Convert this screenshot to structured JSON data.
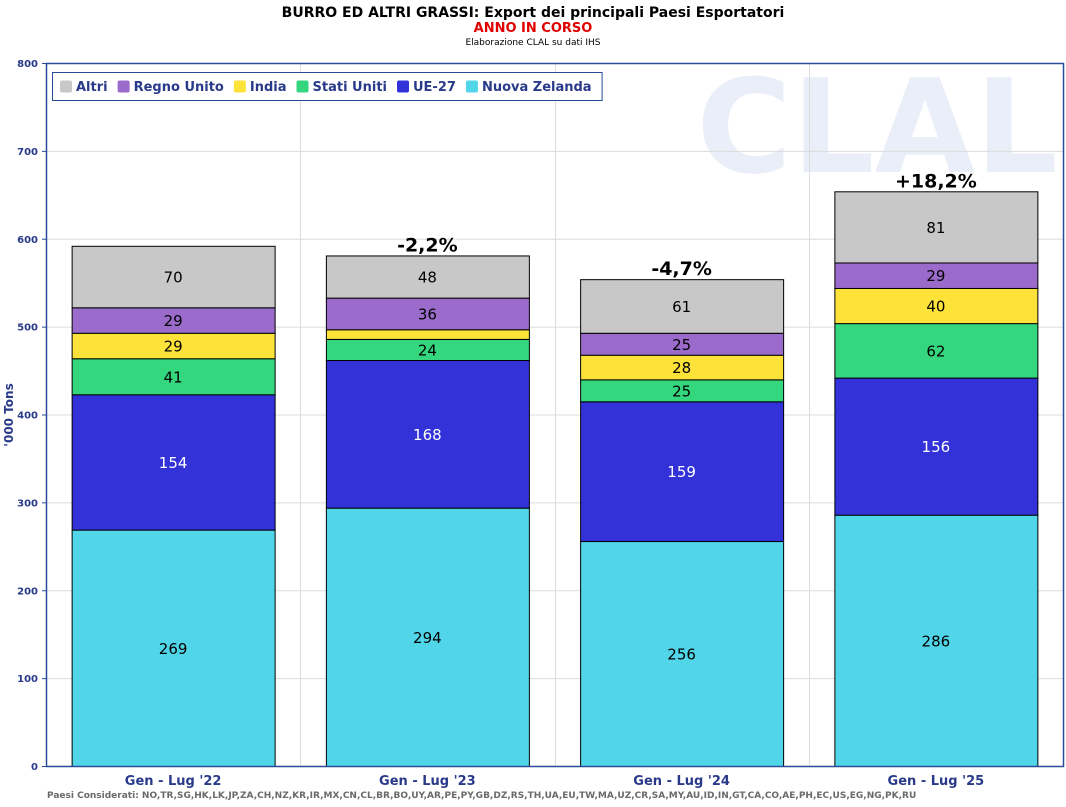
{
  "header": {
    "title": "BURRO ED ALTRI GRASSI: Export dei principali Paesi Esportatori",
    "subtitle": "ANNO IN CORSO",
    "source": "Elaborazione CLAL su dati IHS"
  },
  "watermark": "CLAL",
  "footer": "Paesi Considerati: NO,TR,SG,HK,LK,JP,ZA,CH,NZ,KR,IR,MX,CN,CL,BR,BO,UY,AR,PE,PY,GB,DZ,RS,TH,UA,EU,TW,MA,UZ,CR,SA,MY,AU,ID,IN,GT,CA,CO,AE,PH,EC,US,EG,NG,PK,RU",
  "chart_data": {
    "type": "bar",
    "stacked": true,
    "ylabel": "'000 Tons",
    "ylim": [
      0,
      800
    ],
    "yticks": [
      0,
      100,
      200,
      300,
      400,
      500,
      600,
      700,
      800
    ],
    "grid": true,
    "legend_position": "top-left",
    "categories": [
      "Gen - Lug '22",
      "Gen - Lug '23",
      "Gen - Lug '24",
      "Gen - Lug '25"
    ],
    "series": [
      {
        "name": "Nuova Zelanda",
        "color": "#50d6e8",
        "values": [
          269,
          294,
          256,
          286
        ],
        "labels": [
          "269",
          "294",
          "256",
          "286"
        ],
        "label_color": "#000000"
      },
      {
        "name": "UE-27",
        "color": "#3232d8",
        "values": [
          154,
          168,
          159,
          156
        ],
        "labels": [
          "154",
          "168",
          "159",
          "156"
        ],
        "label_color": "#ffffff"
      },
      {
        "name": "Stati Uniti",
        "color": "#34d67e",
        "values": [
          41,
          24,
          25,
          62
        ],
        "labels": [
          "41",
          "24",
          "25",
          "62"
        ],
        "label_color": "#000000"
      },
      {
        "name": "India",
        "color": "#fde23a",
        "values": [
          29,
          11,
          28,
          40
        ],
        "labels": [
          "29",
          "",
          "28",
          "40"
        ],
        "label_color": "#000000"
      },
      {
        "name": "Regno Unito",
        "color": "#9b6bcb",
        "values": [
          29,
          36,
          25,
          29
        ],
        "labels": [
          "29",
          "36",
          "25",
          "29"
        ],
        "label_color": "#000000"
      },
      {
        "name": "Altri",
        "color": "#c8c8c8",
        "values": [
          70,
          48,
          61,
          81
        ],
        "labels": [
          "70",
          "48",
          "61",
          "81"
        ],
        "label_color": "#000000"
      }
    ],
    "legend_order": [
      "Altri",
      "Regno Unito",
      "India",
      "Stati Uniti",
      "UE-27",
      "Nuova Zelanda"
    ],
    "annotations": [
      "",
      "-2,2%",
      "-4,7%",
      "+18,2%"
    ]
  }
}
